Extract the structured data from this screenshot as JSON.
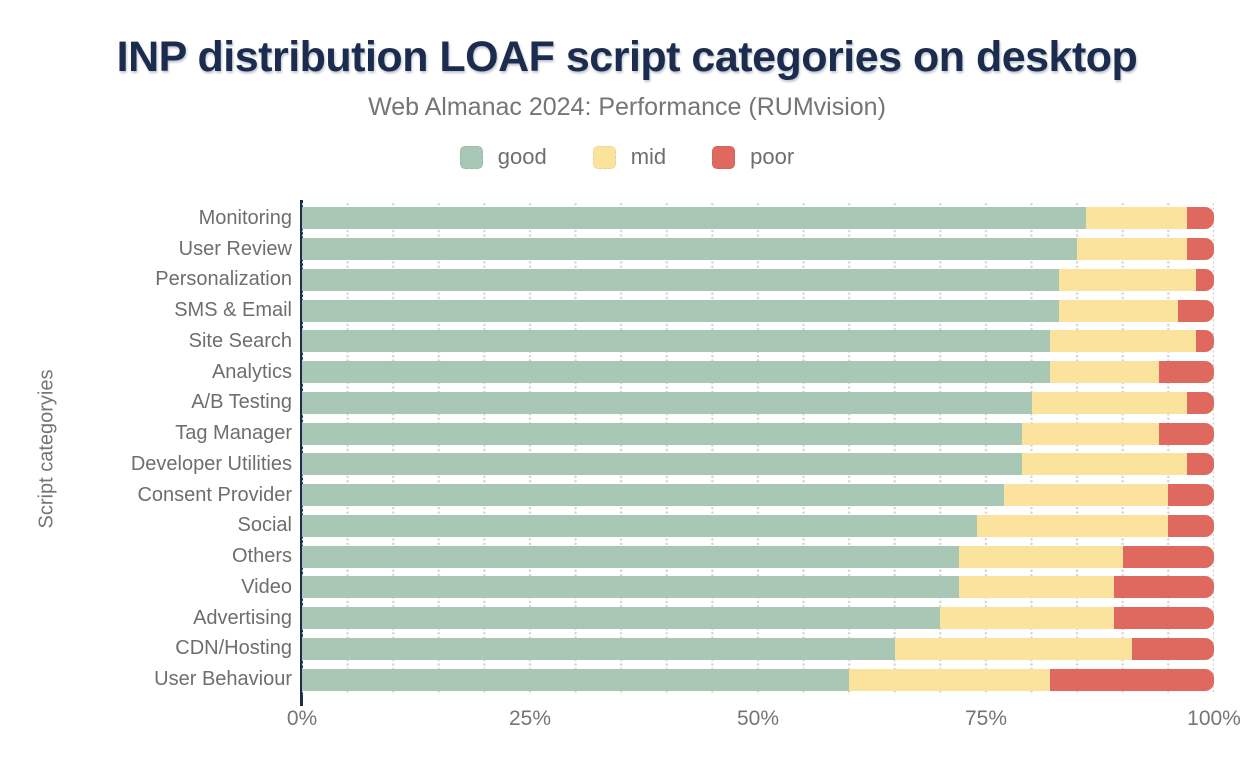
{
  "title": "INP distribution LOAF script categories on desktop",
  "subtitle": "Web Almanac 2024: Performance (RUMvision)",
  "colors": {
    "title_navy": "#1b2c4e",
    "axis_navy": "#1b2c4e",
    "label_gray": "#6e6e6e",
    "good": "#a8c7b4",
    "mid": "#fbe39e",
    "poor": "#e0695f"
  },
  "chart_data": {
    "type": "bar",
    "orientation": "horizontal",
    "stacked": true,
    "unit": "%",
    "title": "INP distribution LOAF script categories on desktop",
    "subtitle": "Web Almanac 2024: Performance (RUMvision)",
    "ylabel": "Script categoryies",
    "xlabel": "",
    "xlim": [
      0,
      100
    ],
    "x_ticks": [
      "0%",
      "25%",
      "50%",
      "75%",
      "100%"
    ],
    "legend_position": "top",
    "grid": "dotted vertical lines every 5%",
    "categories": [
      "Monitoring",
      "User Review",
      "Personalization",
      "SMS & Email",
      "Site Search",
      "Analytics",
      "A/B Testing",
      "Tag Manager",
      "Developer Utilities",
      "Consent Provider",
      "Social",
      "Others",
      "Video",
      "Advertising",
      "CDN/Hosting",
      "User Behaviour"
    ],
    "series": [
      {
        "name": "good",
        "color": "#a8c7b4",
        "values": [
          86,
          85,
          83,
          83,
          82,
          82,
          80,
          79,
          79,
          77,
          74,
          72,
          72,
          70,
          65,
          60
        ]
      },
      {
        "name": "mid",
        "color": "#fbe39e",
        "values": [
          11,
          12,
          15,
          13,
          16,
          12,
          17,
          15,
          18,
          18,
          21,
          18,
          17,
          19,
          26,
          22
        ]
      },
      {
        "name": "poor",
        "color": "#e0695f",
        "values": [
          3,
          3,
          2,
          4,
          2,
          6,
          3,
          6,
          3,
          5,
          5,
          10,
          11,
          11,
          9,
          18
        ]
      }
    ]
  }
}
